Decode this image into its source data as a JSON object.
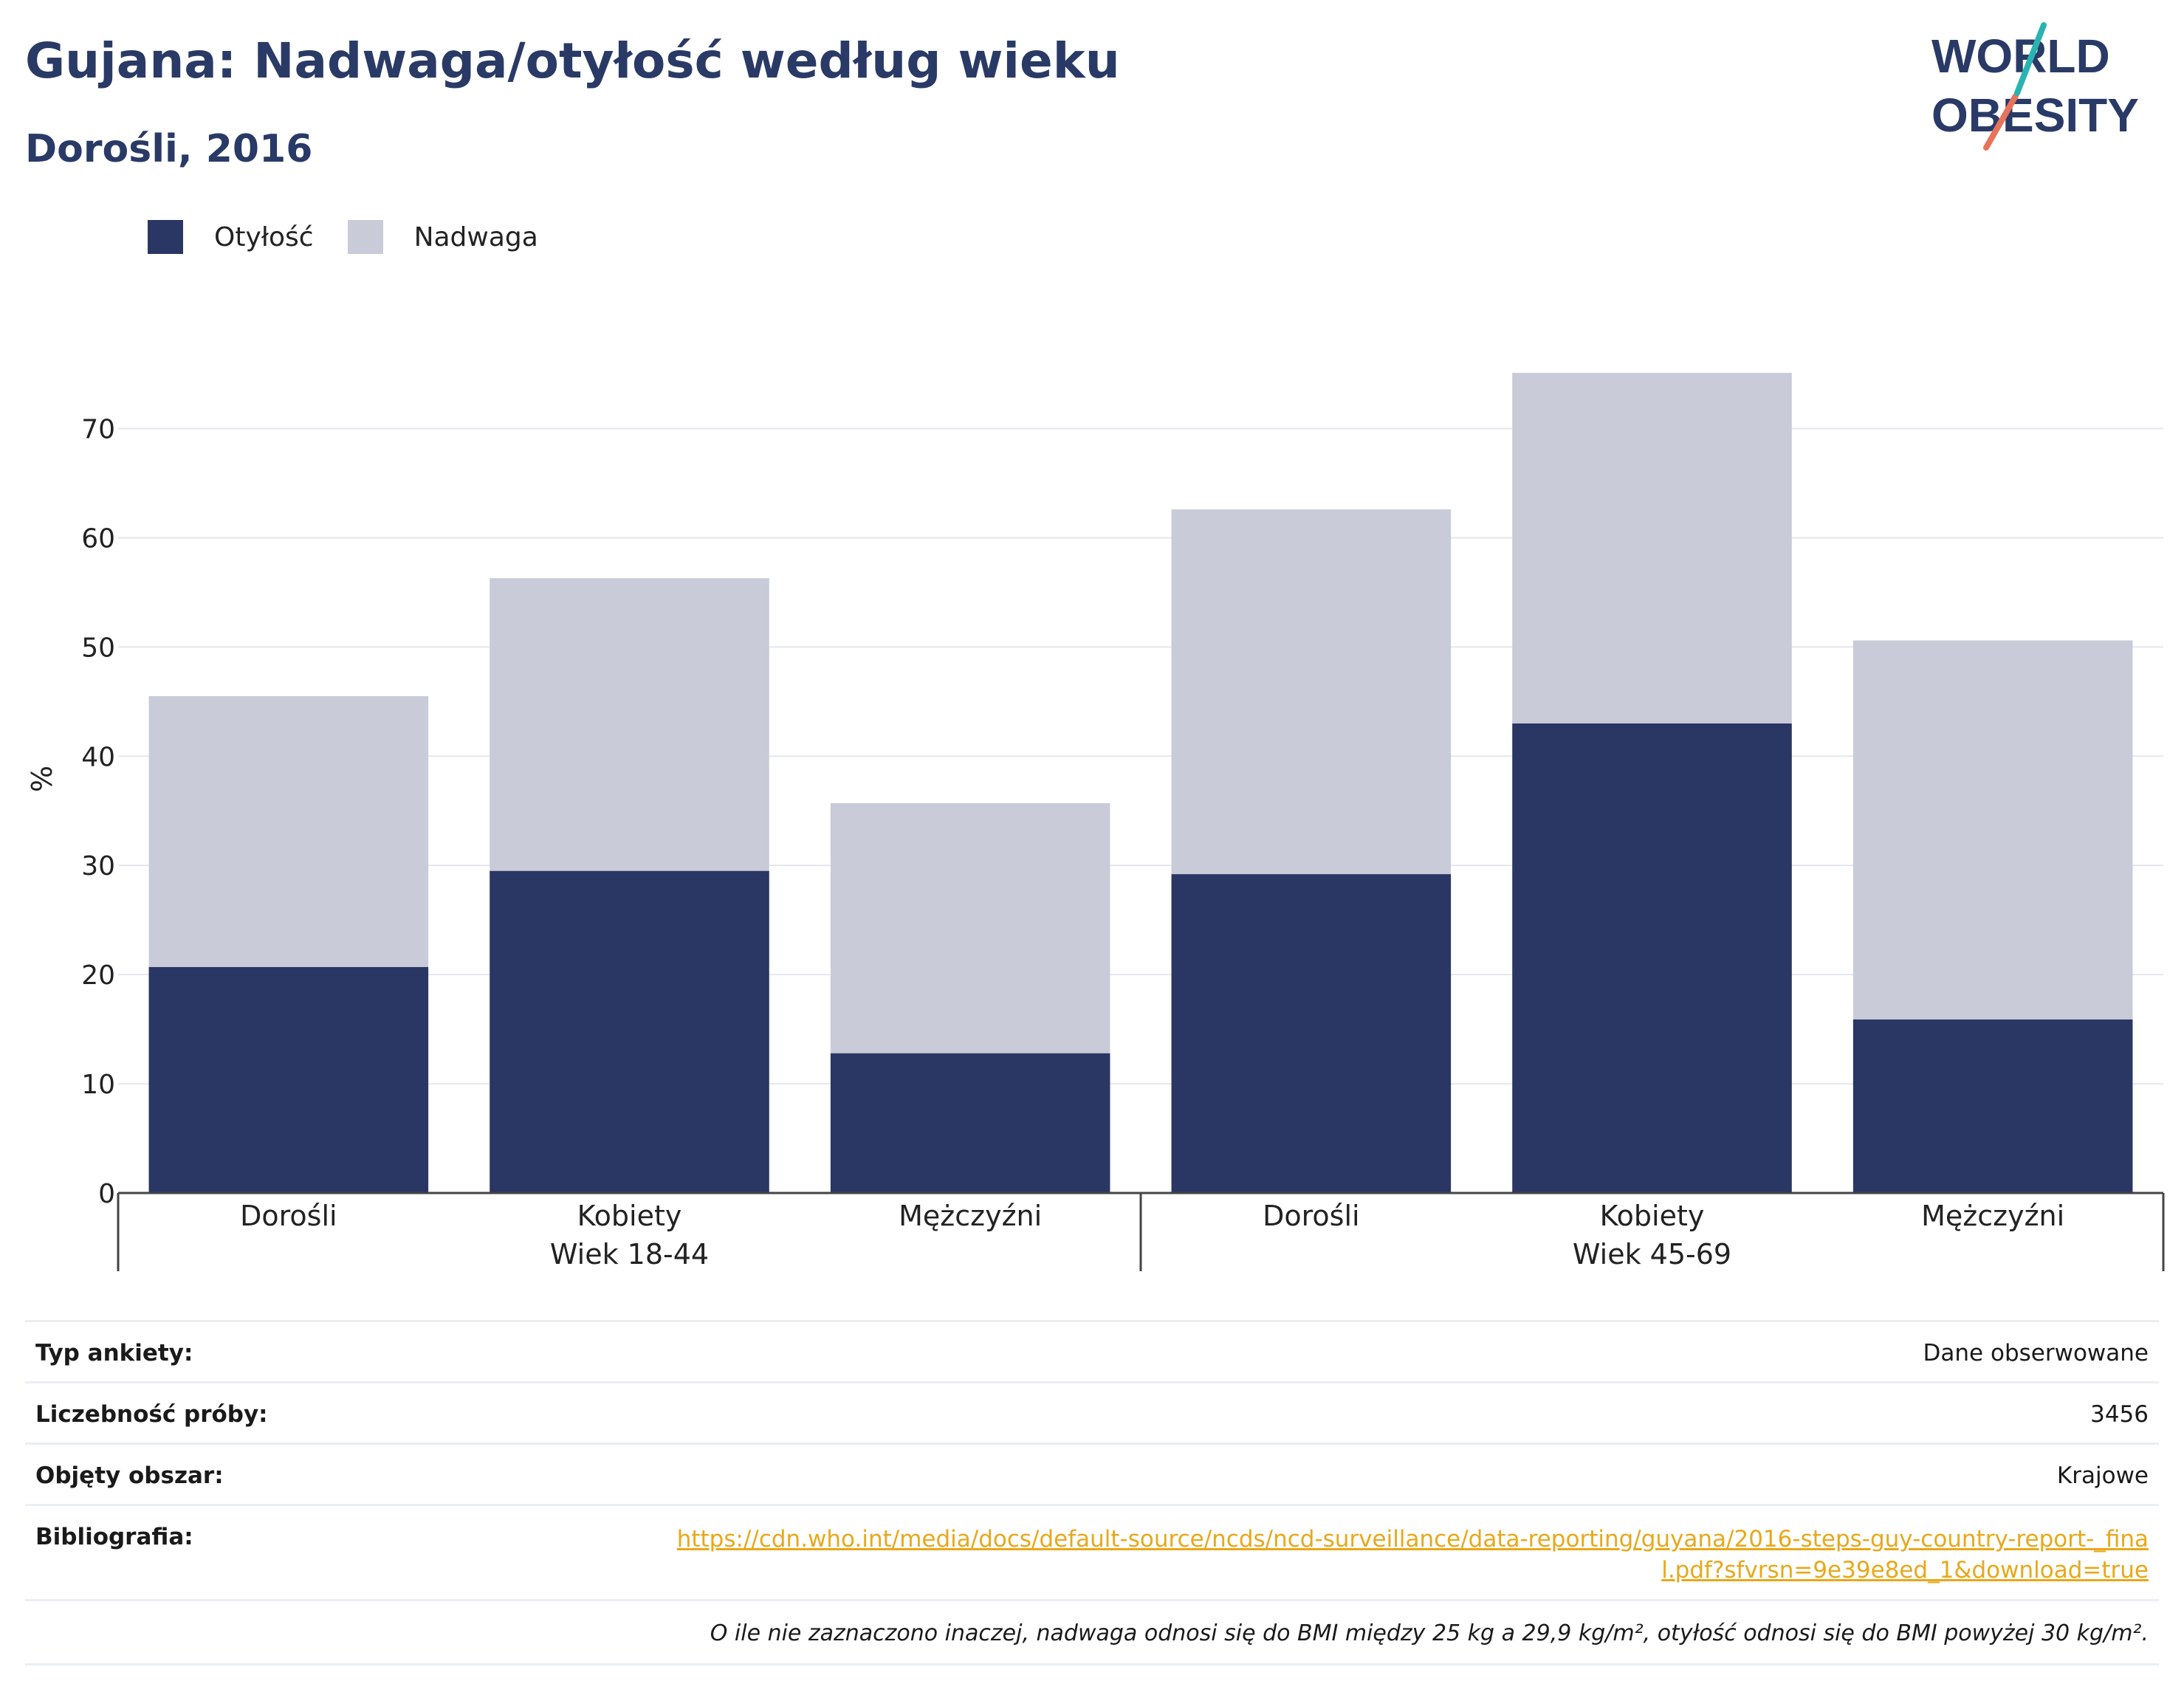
{
  "header": {
    "title": "Gujana: Nadwaga/otyłość według wieku",
    "subtitle": "Dorośli, 2016"
  },
  "logo": {
    "line1": "WORLD",
    "line2": "OBESITY",
    "accent_teal": "#2ab3b1",
    "accent_coral": "#e8735a",
    "text_color": "#2a3a66"
  },
  "legend": {
    "items": [
      {
        "label": "Otyłość",
        "color": "#2a3663"
      },
      {
        "label": "Nadwaga",
        "color": "#c9cbd8"
      }
    ]
  },
  "chart_data": {
    "type": "bar",
    "stacked": true,
    "ylabel": "%",
    "ylim": [
      0,
      77
    ],
    "yticks": [
      0,
      10,
      20,
      30,
      40,
      50,
      60,
      70
    ],
    "grid": true,
    "legend_position": "top-left",
    "categories": [
      "Dorośli",
      "Kobiety",
      "Mężczyźni",
      "Dorośli",
      "Kobiety",
      "Mężczyźni"
    ],
    "groups": [
      {
        "label": "Wiek 18-44",
        "categories": [
          0,
          1,
          2
        ]
      },
      {
        "label": "Wiek 45-69",
        "categories": [
          3,
          4,
          5
        ]
      }
    ],
    "series": [
      {
        "name": "Otyłość",
        "color": "#2a3663",
        "values": [
          20.7,
          29.5,
          12.8,
          29.2,
          43.0,
          15.9
        ]
      },
      {
        "name": "Nadwaga",
        "color": "#c9cbd8",
        "values": [
          24.8,
          26.8,
          22.9,
          33.4,
          32.1,
          34.7
        ]
      }
    ]
  },
  "info": {
    "survey_type_label": "Typ ankiety:",
    "survey_type_value": "Dane obserwowane",
    "sample_size_label": "Liczebność próby:",
    "sample_size_value": "3456",
    "area_label": "Objęty obszar:",
    "area_value": "Krajowe",
    "bibliography_label": "Bibliografia:",
    "bibliography_url": "https://cdn.who.int/media/docs/default-source/ncds/ncd-surveillance/data-reporting/guyana/2016-steps-guy-country-report-_final.pdf?sfvrsn=9e39e8ed_1&download=true",
    "note": "O ile nie zaznaczono inaczej, nadwaga odnosi się do BMI między 25 kg a 29,9 kg/m², otyłość odnosi się do BMI powyżej 30 kg/m²."
  }
}
